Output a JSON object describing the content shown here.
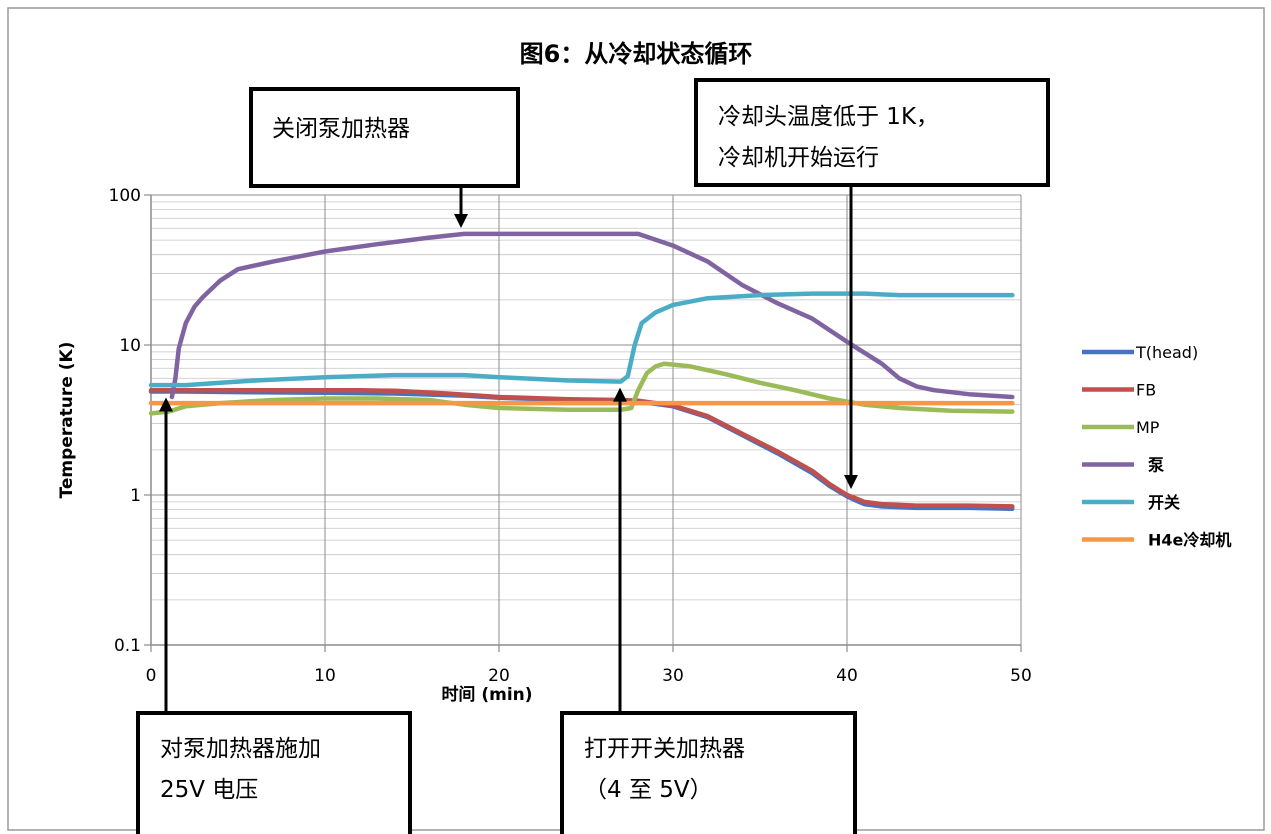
{
  "chart_data": {
    "type": "line",
    "title": "图6：从冷却状态循环",
    "xlabel": "时间 (min)",
    "ylabel": "Temperature (K)",
    "xlim": [
      0,
      50
    ],
    "ylim": [
      0.1,
      100
    ],
    "yscale": "log",
    "grid": true,
    "legend_position": "right",
    "x_ticks": [
      0,
      10,
      20,
      30,
      40,
      50
    ],
    "x_tick_labels": [
      "0",
      "10",
      "20",
      "30",
      "40",
      "50"
    ],
    "y_ticks": [
      0.1,
      1,
      10,
      100
    ],
    "y_tick_labels": [
      "0.1",
      "1",
      "10",
      "100"
    ],
    "series": [
      {
        "name": "T(head)",
        "color": "#4472c4",
        "legend_bold": false,
        "points": [
          [
            0,
            4.9
          ],
          [
            2,
            4.9
          ],
          [
            5,
            4.85
          ],
          [
            10,
            4.8
          ],
          [
            14,
            4.75
          ],
          [
            18,
            4.6
          ],
          [
            20,
            4.45
          ],
          [
            24,
            4.3
          ],
          [
            27,
            4.25
          ],
          [
            28,
            4.2
          ],
          [
            30,
            3.9
          ],
          [
            32,
            3.3
          ],
          [
            34,
            2.5
          ],
          [
            36,
            1.9
          ],
          [
            38,
            1.4
          ],
          [
            39,
            1.15
          ],
          [
            40,
            0.98
          ],
          [
            40.5,
            0.92
          ],
          [
            41,
            0.87
          ],
          [
            42,
            0.84
          ],
          [
            44,
            0.82
          ],
          [
            47,
            0.82
          ],
          [
            49.5,
            0.81
          ]
        ]
      },
      {
        "name": "FB",
        "color": "#c0504d",
        "legend_bold": false,
        "points": [
          [
            0,
            5.0
          ],
          [
            2,
            5.0
          ],
          [
            5,
            5.0
          ],
          [
            8,
            5.0
          ],
          [
            10,
            5.0
          ],
          [
            12,
            5.0
          ],
          [
            14,
            4.95
          ],
          [
            17,
            4.75
          ],
          [
            20,
            4.5
          ],
          [
            24,
            4.35
          ],
          [
            27,
            4.3
          ],
          [
            28,
            4.25
          ],
          [
            30,
            3.95
          ],
          [
            32,
            3.35
          ],
          [
            34,
            2.55
          ],
          [
            36,
            1.95
          ],
          [
            38,
            1.45
          ],
          [
            39,
            1.18
          ],
          [
            40,
            1.0
          ],
          [
            40.5,
            0.95
          ],
          [
            41,
            0.9
          ],
          [
            42,
            0.87
          ],
          [
            44,
            0.85
          ],
          [
            47,
            0.85
          ],
          [
            49.5,
            0.84
          ]
        ]
      },
      {
        "name": "MP",
        "color": "#9bbb59",
        "legend_bold": false,
        "points": [
          [
            0,
            3.5
          ],
          [
            1,
            3.6
          ],
          [
            2,
            3.9
          ],
          [
            4,
            4.1
          ],
          [
            7,
            4.3
          ],
          [
            10,
            4.4
          ],
          [
            13,
            4.4
          ],
          [
            16,
            4.3
          ],
          [
            18,
            4.0
          ],
          [
            20,
            3.8
          ],
          [
            24,
            3.7
          ],
          [
            27,
            3.7
          ],
          [
            27.6,
            3.8
          ],
          [
            28,
            5.0
          ],
          [
            28.5,
            6.5
          ],
          [
            29,
            7.2
          ],
          [
            29.5,
            7.5
          ],
          [
            31,
            7.2
          ],
          [
            33,
            6.4
          ],
          [
            35,
            5.6
          ],
          [
            37,
            5.0
          ],
          [
            39,
            4.4
          ],
          [
            41,
            4.0
          ],
          [
            43,
            3.8
          ],
          [
            46,
            3.65
          ],
          [
            49.5,
            3.6
          ]
        ]
      },
      {
        "name": "泵",
        "color": "#8064a2",
        "legend_bold": true,
        "points": [
          [
            1.2,
            4.5
          ],
          [
            1.4,
            6
          ],
          [
            1.6,
            9.5
          ],
          [
            2,
            14
          ],
          [
            2.5,
            18
          ],
          [
            3,
            21
          ],
          [
            4,
            27
          ],
          [
            5,
            32
          ],
          [
            7,
            36
          ],
          [
            10,
            42
          ],
          [
            13,
            47
          ],
          [
            16,
            52
          ],
          [
            18,
            55
          ],
          [
            21,
            55
          ],
          [
            24,
            55
          ],
          [
            27,
            55
          ],
          [
            28,
            55
          ],
          [
            30,
            46
          ],
          [
            32,
            36
          ],
          [
            34,
            25
          ],
          [
            36,
            19
          ],
          [
            38,
            15
          ],
          [
            40,
            10.5
          ],
          [
            42,
            7.5
          ],
          [
            43,
            6
          ],
          [
            44,
            5.3
          ],
          [
            45,
            5.0
          ],
          [
            47,
            4.7
          ],
          [
            49.5,
            4.5
          ]
        ]
      },
      {
        "name": "开关",
        "color": "#4bacc6",
        "legend_bold": true,
        "points": [
          [
            0,
            5.4
          ],
          [
            2,
            5.4
          ],
          [
            4,
            5.6
          ],
          [
            6,
            5.8
          ],
          [
            10,
            6.1
          ],
          [
            14,
            6.3
          ],
          [
            18,
            6.3
          ],
          [
            20,
            6.1
          ],
          [
            24,
            5.8
          ],
          [
            27,
            5.7
          ],
          [
            27.4,
            6.2
          ],
          [
            27.8,
            10
          ],
          [
            28.2,
            14
          ],
          [
            29,
            16.5
          ],
          [
            30,
            18.5
          ],
          [
            32,
            20.5
          ],
          [
            35,
            21.5
          ],
          [
            38,
            22
          ],
          [
            41,
            22
          ],
          [
            43,
            21.5
          ],
          [
            46,
            21.5
          ],
          [
            49.5,
            21.5
          ]
        ]
      },
      {
        "name": "H4e冷却机",
        "color": "#f79646",
        "legend_bold": true,
        "points": [
          [
            0,
            4.1
          ],
          [
            10,
            4.1
          ],
          [
            20,
            4.1
          ],
          [
            30,
            4.1
          ],
          [
            40,
            4.1
          ],
          [
            49.5,
            4.1
          ]
        ]
      }
    ],
    "annotations": [
      {
        "id": "pump-heater-off",
        "lines": [
          "关闭泵加热器"
        ],
        "target": [
          18,
          55
        ]
      },
      {
        "id": "head-below-1k",
        "lines": [
          "冷却头温度低于 1K，",
          "冷却机开始运行"
        ],
        "target": [
          40,
          1.0
        ]
      },
      {
        "id": "pump-25v",
        "lines": [
          "对泵加热器施加",
          "25V 电压"
        ],
        "target": [
          1,
          4.9
        ]
      },
      {
        "id": "switch-heater-on",
        "lines": [
          "打开开关加热器",
          "（4 至 5V）"
        ],
        "target": [
          27,
          5.7
        ]
      }
    ]
  }
}
